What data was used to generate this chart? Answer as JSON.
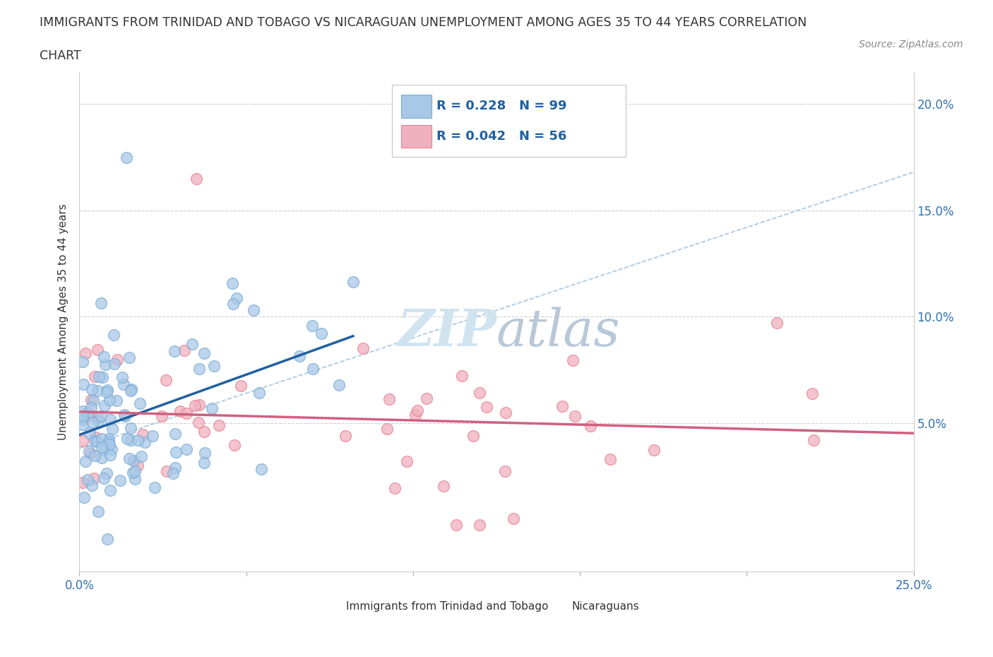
{
  "title_line1": "IMMIGRANTS FROM TRINIDAD AND TOBAGO VS NICARAGUAN UNEMPLOYMENT AMONG AGES 35 TO 44 YEARS CORRELATION",
  "title_line2": "CHART",
  "source_text": "Source: ZipAtlas.com",
  "ylabel": "Unemployment Among Ages 35 to 44 years",
  "xlim": [
    0.0,
    0.25
  ],
  "ylim": [
    -0.02,
    0.215
  ],
  "ytick_vals": [
    0.05,
    0.1,
    0.15,
    0.2
  ],
  "ytick_labels": [
    "5.0%",
    "10.0%",
    "15.0%",
    "20.0%"
  ],
  "xtick_vals": [
    0.0,
    0.05,
    0.1,
    0.15,
    0.2,
    0.25
  ],
  "xtick_labels": [
    "0.0%",
    "",
    "",
    "",
    "",
    "25.0%"
  ],
  "blue_color": "#a8c8e8",
  "pink_color": "#f0b0c0",
  "blue_edge_color": "#7aacd4",
  "pink_edge_color": "#e88090",
  "blue_line_color": "#2060a0",
  "pink_line_color": "#d06080",
  "dash_line_color": "#90b8d8",
  "watermark_color": "#d0e4f0",
  "grid_color": "#d0d0d0",
  "legend_R1": "R = 0.228",
  "legend_N1": "N = 99",
  "legend_R2": "R = 0.042",
  "legend_N2": "N = 56",
  "background_color": "#ffffff"
}
